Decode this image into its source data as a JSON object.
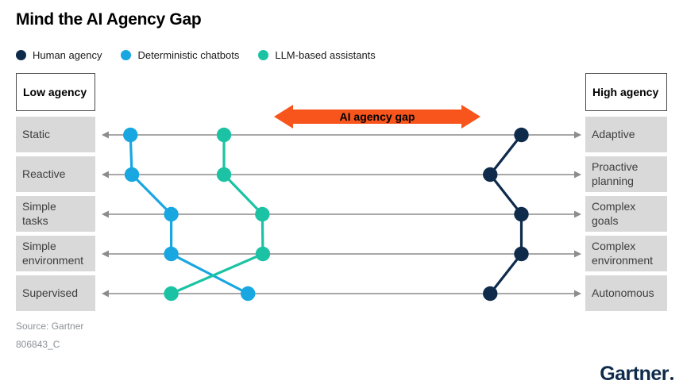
{
  "title": "Mind the AI Agency Gap",
  "legend": {
    "items": [
      {
        "label": "Human agency",
        "color": "#0f2b4c"
      },
      {
        "label": "Deterministic chatbots",
        "color": "#18a7e0"
      },
      {
        "label": "LLM-based assistants",
        "color": "#1bc3a4"
      }
    ]
  },
  "axis": {
    "left_header": "Low agency",
    "right_header": "High agency"
  },
  "rows": [
    {
      "left": "Static",
      "right": "Adaptive"
    },
    {
      "left": "Reactive",
      "right": "Proactive\nplanning"
    },
    {
      "left": "Simple\ntasks",
      "right": "Complex\ngoals"
    },
    {
      "left": "Simple\nenvironment",
      "right": "Complex\nenvironment"
    },
    {
      "left": "Supervised",
      "right": "Autonomous"
    }
  ],
  "gap_arrow": {
    "label": "AI agency gap",
    "color": "#f8551d"
  },
  "source": {
    "line1": "Source: Gartner",
    "line2": "806843_C"
  },
  "brand": {
    "logo_text": "Gartner"
  },
  "chart_data": {
    "type": "line",
    "subtype": "bump-slope comparison across five agency dimensions",
    "title": "Mind the AI Agency Gap",
    "categories": [
      "Static vs Adaptive",
      "Reactive vs Proactive planning",
      "Simple tasks vs Complex goals",
      "Simple environment vs Complex environment",
      "Supervised vs Autonomous"
    ],
    "axis_scale": "0 = low agency (left end of axis), 100 = high agency (right end of axis)",
    "xlim": [
      0,
      100
    ],
    "legend_position": "top-left",
    "annotations": [
      {
        "text": "AI agency gap",
        "type": "double-headed-arrow",
        "spans_x": [
          36,
          79
        ]
      }
    ],
    "series": [
      {
        "name": "Human agency",
        "color": "#0f2b4c",
        "values": [
          87.5,
          81,
          87.5,
          87.5,
          81
        ]
      },
      {
        "name": "Deterministic chatbots",
        "color": "#18a7e0",
        "values": [
          6,
          6.3,
          14.5,
          14.5,
          30.5
        ]
      },
      {
        "name": "LLM-based assistants",
        "color": "#1bc3a4",
        "values": [
          25.5,
          25.5,
          33.5,
          33.6,
          14.5
        ]
      }
    ]
  }
}
